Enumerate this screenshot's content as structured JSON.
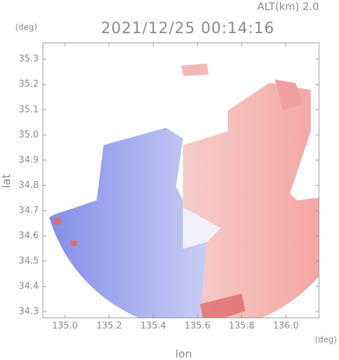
{
  "chart_data": {
    "type": "radar-field",
    "altitude_label": "ALT(km) 2.0",
    "title": "2021/12/25 00:14:16",
    "y_unit": "(deg)",
    "x_unit": "(deg)",
    "ylabel": "lat",
    "xlabel": "lon",
    "xlim": [
      134.9,
      136.15
    ],
    "ylim": [
      34.275,
      35.365
    ],
    "xticks": [
      {
        "value": 135,
        "label": "135.0"
      },
      135.2,
      135.4,
      135.6,
      135.8,
      {
        "value": 136,
        "label": "136.0"
      }
    ],
    "yticks": [
      34.3,
      34.4,
      34.5,
      34.6,
      34.7,
      34.8,
      34.9,
      {
        "value": 35,
        "label": "35.0"
      },
      35.1,
      35.2,
      35.3
    ]
  }
}
